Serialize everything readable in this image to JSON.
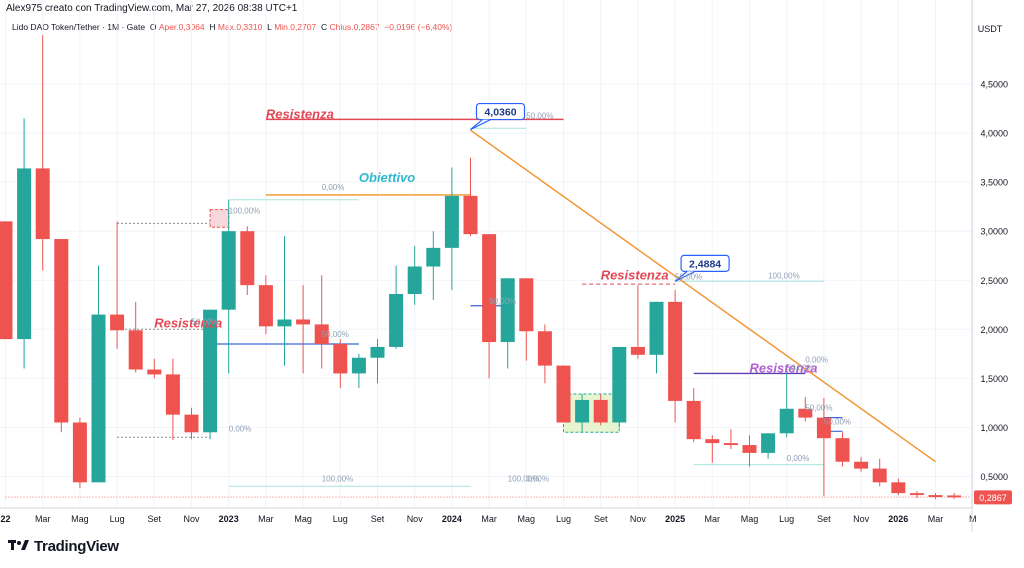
{
  "header": {
    "creator_line": "Alex975 creato con TradingView.com, Mar 27, 2026 08:38 UTC+1",
    "symbol": "Lido DAO Token/Tether · 1M · Gate",
    "open_label": "O",
    "open_value": "Aper.0,3064",
    "high_label": "H",
    "high_value": "Max.0,3310",
    "low_label": "L",
    "low_value": "Min.0,2707",
    "close_label": "C",
    "close_value": "Chius.0,2867",
    "change_value": "−0,0196 (−6,40%)"
  },
  "brand": {
    "name": "TradingView",
    "logo_icon": "tradingview-logo-icon"
  },
  "colors": {
    "up": "#26a69a",
    "down": "#ef5350",
    "trendline": "#f0932b",
    "grid": "#f0f3fa"
  },
  "chart_data": {
    "type": "candlestick",
    "currency": "USDT",
    "y_axis": {
      "ticks": [
        "0,5000",
        "1,0000",
        "1,5000",
        "2,0000",
        "2,5000",
        "3,0000",
        "3,5000",
        "4,0000",
        "4,5000"
      ],
      "tick_values": [
        0.5,
        1,
        1.5,
        2,
        2.5,
        3,
        3.5,
        4,
        4.5
      ]
    },
    "x_axis": {
      "ticks": [
        "22",
        "Mar",
        "Mag",
        "Lug",
        "Set",
        "Nov",
        "2023",
        "Mar",
        "Mag",
        "Lug",
        "Set",
        "Nov",
        "2024",
        "Mar",
        "Mag",
        "Lug",
        "Set",
        "Nov",
        "2025",
        "Mar",
        "Mag",
        "Lug",
        "Set",
        "Nov",
        "2026",
        "Mar",
        "M"
      ]
    },
    "last_price_label": "0,2867",
    "candles": [
      {
        "date": "2021-12",
        "open": 3.1,
        "high": 3.1,
        "low": 1.9,
        "close": 1.9
      },
      {
        "date": "2022-01",
        "open": 1.9,
        "high": 4.15,
        "low": 1.6,
        "close": 3.64
      },
      {
        "date": "2022-02",
        "open": 3.64,
        "high": 5.0,
        "low": 2.6,
        "close": 2.92
      },
      {
        "date": "2022-03",
        "open": 2.92,
        "high": 2.92,
        "low": 0.95,
        "close": 1.05
      },
      {
        "date": "2022-04",
        "open": 1.05,
        "high": 1.1,
        "low": 0.38,
        "close": 0.44
      },
      {
        "date": "2022-05",
        "open": 0.44,
        "high": 2.65,
        "low": 0.44,
        "close": 2.15
      },
      {
        "date": "2022-06",
        "open": 2.15,
        "high": 3.1,
        "low": 1.8,
        "close": 1.99
      },
      {
        "date": "2022-07",
        "open": 1.99,
        "high": 2.28,
        "low": 1.56,
        "close": 1.59
      },
      {
        "date": "2022-08",
        "open": 1.59,
        "high": 1.7,
        "low": 1.5,
        "close": 1.54
      },
      {
        "date": "2022-09",
        "open": 1.54,
        "high": 1.7,
        "low": 0.87,
        "close": 1.13
      },
      {
        "date": "2022-10",
        "open": 1.13,
        "high": 1.2,
        "low": 0.88,
        "close": 0.95
      },
      {
        "date": "2022-11",
        "open": 0.95,
        "high": 2.2,
        "low": 0.88,
        "close": 2.2
      },
      {
        "date": "2022-12",
        "open": 2.2,
        "high": 3.32,
        "low": 1.55,
        "close": 3.0
      },
      {
        "date": "2023-01",
        "open": 3.0,
        "high": 3.05,
        "low": 2.35,
        "close": 2.45
      },
      {
        "date": "2023-02",
        "open": 2.45,
        "high": 2.55,
        "low": 1.95,
        "close": 2.03
      },
      {
        "date": "2023-03",
        "open": 2.03,
        "high": 2.95,
        "low": 1.63,
        "close": 2.1
      },
      {
        "date": "2023-04",
        "open": 2.1,
        "high": 2.45,
        "low": 1.55,
        "close": 2.05
      },
      {
        "date": "2023-05",
        "open": 2.05,
        "high": 2.55,
        "low": 1.6,
        "close": 1.85
      },
      {
        "date": "2023-06",
        "open": 1.85,
        "high": 1.9,
        "low": 1.4,
        "close": 1.55
      },
      {
        "date": "2023-07",
        "open": 1.55,
        "high": 1.75,
        "low": 1.4,
        "close": 1.71
      },
      {
        "date": "2023-08",
        "open": 1.71,
        "high": 1.9,
        "low": 1.45,
        "close": 1.82
      },
      {
        "date": "2023-09",
        "open": 1.82,
        "high": 2.65,
        "low": 1.8,
        "close": 2.36
      },
      {
        "date": "2023-10",
        "open": 2.36,
        "high": 2.85,
        "low": 2.25,
        "close": 2.64
      },
      {
        "date": "2023-11",
        "open": 2.64,
        "high": 3.0,
        "low": 2.3,
        "close": 2.83
      },
      {
        "date": "2023-12",
        "open": 2.83,
        "high": 3.65,
        "low": 2.4,
        "close": 3.36
      },
      {
        "date": "2024-01",
        "open": 3.36,
        "high": 3.75,
        "low": 2.95,
        "close": 2.97
      },
      {
        "date": "2024-02",
        "open": 2.97,
        "high": 2.97,
        "low": 1.5,
        "close": 1.87
      },
      {
        "date": "2024-03",
        "open": 1.87,
        "high": 2.52,
        "low": 1.6,
        "close": 2.52
      },
      {
        "date": "2024-04",
        "open": 2.52,
        "high": 2.52,
        "low": 1.68,
        "close": 1.98
      },
      {
        "date": "2024-05",
        "open": 1.98,
        "high": 2.05,
        "low": 1.45,
        "close": 1.63
      },
      {
        "date": "2024-06",
        "open": 1.63,
        "high": 1.63,
        "low": 1.05,
        "close": 1.05
      },
      {
        "date": "2024-07",
        "open": 1.05,
        "high": 1.34,
        "low": 0.95,
        "close": 1.28
      },
      {
        "date": "2024-08",
        "open": 1.28,
        "high": 1.34,
        "low": 1.02,
        "close": 1.05
      },
      {
        "date": "2024-09",
        "open": 1.05,
        "high": 1.82,
        "low": 1.0,
        "close": 1.82
      },
      {
        "date": "2024-10",
        "open": 1.82,
        "high": 2.45,
        "low": 1.7,
        "close": 1.74
      },
      {
        "date": "2024-11",
        "open": 1.74,
        "high": 2.28,
        "low": 1.55,
        "close": 2.28
      },
      {
        "date": "2024-12",
        "open": 2.28,
        "high": 2.4,
        "low": 1.05,
        "close": 1.27
      },
      {
        "date": "2025-01",
        "open": 1.27,
        "high": 1.4,
        "low": 0.85,
        "close": 0.88
      },
      {
        "date": "2025-02",
        "open": 0.88,
        "high": 0.92,
        "low": 0.64,
        "close": 0.84
      },
      {
        "date": "2025-03",
        "open": 0.84,
        "high": 0.98,
        "low": 0.78,
        "close": 0.82
      },
      {
        "date": "2025-04",
        "open": 0.82,
        "high": 0.92,
        "low": 0.6,
        "close": 0.74
      },
      {
        "date": "2025-05",
        "open": 0.74,
        "high": 0.94,
        "low": 0.68,
        "close": 0.94
      },
      {
        "date": "2025-06",
        "open": 0.94,
        "high": 1.55,
        "low": 0.9,
        "close": 1.19
      },
      {
        "date": "2025-07",
        "open": 1.19,
        "high": 1.31,
        "low": 1.06,
        "close": 1.1
      },
      {
        "date": "2025-08",
        "open": 1.1,
        "high": 1.3,
        "low": 0.3,
        "close": 0.89
      },
      {
        "date": "2025-09",
        "open": 0.89,
        "high": 0.95,
        "low": 0.6,
        "close": 0.65
      },
      {
        "date": "2025-10",
        "open": 0.65,
        "high": 0.7,
        "low": 0.55,
        "close": 0.58
      },
      {
        "date": "2025-11",
        "open": 0.58,
        "high": 0.68,
        "low": 0.4,
        "close": 0.44
      },
      {
        "date": "2025-12",
        "open": 0.44,
        "high": 0.48,
        "low": 0.31,
        "close": 0.33
      },
      {
        "date": "2026-01",
        "open": 0.33,
        "high": 0.35,
        "low": 0.28,
        "close": 0.31
      },
      {
        "date": "2026-02",
        "open": 0.31,
        "high": 0.33,
        "low": 0.27,
        "close": 0.29
      },
      {
        "date": "2026-03",
        "open": 0.3064,
        "high": 0.331,
        "low": 0.2707,
        "close": 0.2867
      }
    ],
    "annotations": [
      {
        "type": "text",
        "text": "Resistenza",
        "color": "#e04856",
        "x": "2023-02",
        "y": 4.15
      },
      {
        "type": "text",
        "text": "Obiettivo",
        "color": "#2eb8d0",
        "x": "2023-07",
        "y": 3.5
      },
      {
        "type": "text",
        "text": "Resistenza",
        "color": "#e04856",
        "x": "2022-08",
        "y": 2.02
      },
      {
        "type": "text",
        "text": "Resistenza",
        "color": "#e04856",
        "x": "2024-08",
        "y": 2.51
      },
      {
        "type": "text",
        "text": "Resistenza",
        "color": "#b25fd0",
        "x": "2025-04",
        "y": 1.56
      },
      {
        "type": "price_label",
        "text": "4,0360",
        "value": 4.036,
        "x": "2024-01"
      },
      {
        "type": "price_label",
        "text": "2,4884",
        "value": 2.4884,
        "x": "2024-12"
      },
      {
        "type": "fib_label",
        "text": "50,00%",
        "x": "2024-04",
        "y": 4.15
      },
      {
        "type": "fib_label",
        "text": "50,00%",
        "x": "2024-12",
        "y": 2.51
      },
      {
        "type": "fib_label",
        "text": "50,00%",
        "x": "2022-10",
        "y": 2.05
      },
      {
        "type": "fib_label",
        "text": "100,00%",
        "x": "2022-12",
        "y": 3.18
      },
      {
        "type": "fib_label",
        "text": "0,00%",
        "x": "2022-12",
        "y": 0.96
      },
      {
        "type": "fib_label",
        "text": "0,00%",
        "x": "2023-05",
        "y": 3.42
      },
      {
        "type": "fib_label",
        "text": "50,00%",
        "x": "2023-05",
        "y": 1.92
      },
      {
        "type": "fib_label",
        "text": "100,00%",
        "x": "2023-05",
        "y": 0.45
      },
      {
        "type": "fib_label",
        "text": "50,00%",
        "x": "2024-02",
        "y": 2.26
      },
      {
        "type": "fib_label",
        "text": "100,00%",
        "x": "2024-03",
        "y": 0.45
      },
      {
        "type": "fib_label",
        "text": "0,00%",
        "x": "2024-04",
        "y": 0.45
      },
      {
        "type": "fib_label",
        "text": "100,00%",
        "x": "2025-05",
        "y": 2.52
      },
      {
        "type": "fib_label",
        "text": "50,00%",
        "x": "2025-06",
        "y": 1.58
      },
      {
        "type": "fib_label",
        "text": "0,00%",
        "x": "2025-06",
        "y": 0.66
      },
      {
        "type": "fib_label",
        "text": "0,00%",
        "x": "2025-07",
        "y": 1.66
      },
      {
        "type": "fib_label",
        "text": "50,00%",
        "x": "2025-07",
        "y": 1.17
      },
      {
        "type": "fib_label",
        "text": "50,00%",
        "x": "2025-08",
        "y": 1.03
      }
    ]
  }
}
